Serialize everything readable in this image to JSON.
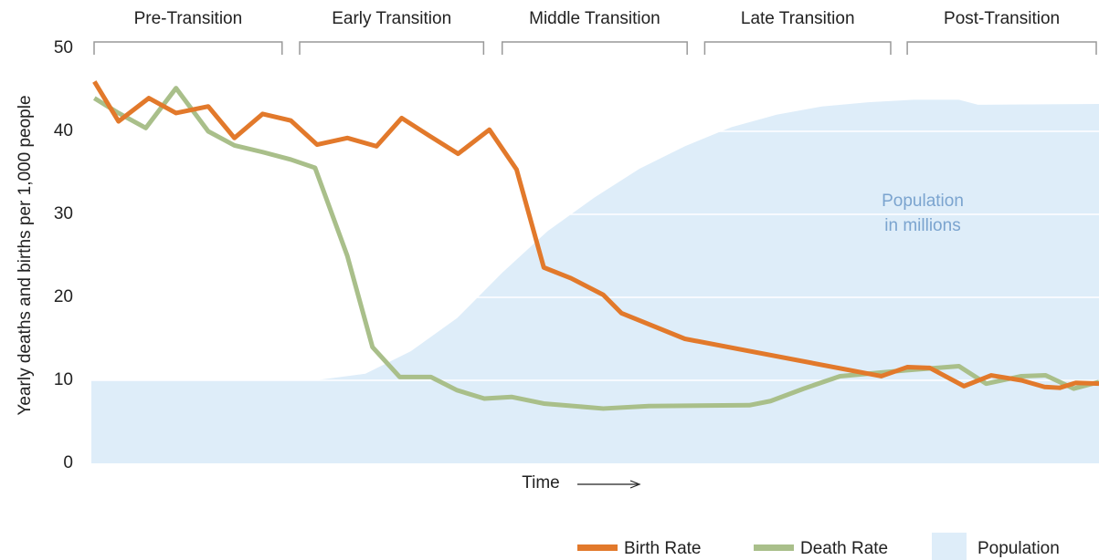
{
  "chart_data": {
    "type": "line",
    "y_label": "Yearly deaths and births per 1,000 people",
    "x_label": "Time",
    "annotation": [
      "Population",
      "in millions"
    ],
    "xlim": [
      0,
      100
    ],
    "ylim": [
      0,
      50
    ],
    "yticks": [
      0,
      10,
      20,
      30,
      40,
      50
    ],
    "grid": true,
    "phases": [
      {
        "label": "Pre-Transition",
        "start": 0,
        "end": 19.2
      },
      {
        "label": "Early Transition",
        "start": 20.4,
        "end": 39.2
      },
      {
        "label": "Middle Transition",
        "start": 40.5,
        "end": 59.4
      },
      {
        "label": "Late Transition",
        "start": 60.6,
        "end": 79.6
      },
      {
        "label": "Post-Transition",
        "start": 80.7,
        "end": 100
      }
    ],
    "series": [
      {
        "name": "Population",
        "type": "area",
        "color": "#deedf9",
        "x": [
          0,
          22.2,
          27.2,
          31.7,
          36.3,
          40.8,
          45.3,
          49.9,
          54.4,
          58.9,
          63.5,
          68,
          72.5,
          77.1,
          81.6,
          86.1,
          88,
          100
        ],
        "values": [
          10,
          10,
          10.8,
          13.5,
          17.5,
          23,
          28,
          32,
          35.5,
          38.2,
          40.5,
          42,
          43,
          43.5,
          43.8,
          43.8,
          43.2,
          43.3
        ]
      },
      {
        "name": "Birth Rate",
        "type": "line",
        "color": "#e2792b",
        "x": [
          0.3,
          2.7,
          5.7,
          8.4,
          11.6,
          14.2,
          17,
          19.8,
          22.4,
          25.4,
          28.3,
          30.8,
          33.5,
          36.4,
          39.5,
          42.2,
          44.9,
          47.6,
          50.8,
          52.6,
          58.9,
          78.4,
          81,
          83.2,
          86.6,
          89.3,
          92.3,
          94.6,
          96.1,
          97.7,
          100
        ],
        "values": [
          46,
          41.2,
          44,
          42.2,
          43,
          39.2,
          42.1,
          41.3,
          38.4,
          39.2,
          38.2,
          41.6,
          39.5,
          37.3,
          40.2,
          35.4,
          23.6,
          22.3,
          20.3,
          18.1,
          15,
          10.5,
          11.6,
          11.5,
          9.3,
          10.6,
          10,
          9.2,
          9.1,
          9.7,
          9.6
        ]
      },
      {
        "name": "Death Rate",
        "type": "line",
        "color": "#a9bf8a",
        "x": [
          0.3,
          2.7,
          5.4,
          8.4,
          11.6,
          14.2,
          17,
          19.8,
          22.2,
          25.4,
          27.9,
          30.6,
          33.7,
          36.3,
          39,
          41.7,
          44.9,
          50.8,
          55.3,
          65.3,
          67.4,
          70.7,
          74.3,
          80.7,
          86.1,
          88.8,
          92.3,
          94.7,
          97.5,
          100
        ],
        "values": [
          44,
          42.2,
          40.4,
          45.2,
          40,
          38.3,
          37.5,
          36.6,
          35.6,
          25,
          14,
          10.4,
          10.4,
          8.8,
          7.8,
          8,
          7.2,
          6.6,
          6.9,
          7,
          7.5,
          9,
          10.5,
          11.2,
          11.7,
          9.6,
          10.5,
          10.6,
          9,
          9.8
        ]
      }
    ]
  }
}
